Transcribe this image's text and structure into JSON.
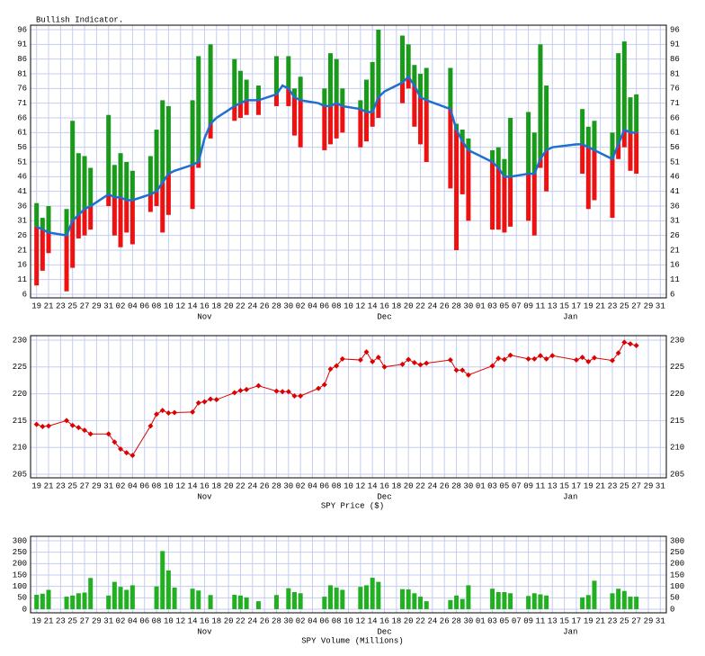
{
  "chart_data": [
    {
      "type": "range",
      "title": "Bullish Indicator.",
      "x": [
        0,
        1,
        2,
        5,
        6,
        7,
        8,
        9,
        12,
        13,
        14,
        15,
        16,
        19,
        20,
        21,
        22,
        23,
        26,
        27,
        28,
        29,
        30,
        33,
        34,
        35,
        37,
        40,
        41,
        42,
        43,
        44,
        47,
        48,
        49,
        50,
        51,
        54,
        55,
        56,
        57,
        58,
        61,
        62,
        63,
        64,
        65,
        69,
        70,
        71,
        72,
        76,
        77,
        78,
        79,
        82,
        83,
        84,
        85,
        86,
        90,
        91,
        92,
        93,
        96,
        97,
        98,
        99,
        100
      ],
      "xlim": [
        -1,
        105
      ],
      "xticks": [
        {
          "value": 0,
          "label": "19"
        },
        {
          "value": 2,
          "label": "21"
        },
        {
          "value": 4,
          "label": "23"
        },
        {
          "value": 6,
          "label": "25"
        },
        {
          "value": 8,
          "label": "27"
        },
        {
          "value": 10,
          "label": "29"
        },
        {
          "value": 12,
          "label": "31"
        },
        {
          "value": 14,
          "label": "02"
        },
        {
          "value": 16,
          "label": "04"
        },
        {
          "value": 18,
          "label": "06"
        },
        {
          "value": 20,
          "label": "08"
        },
        {
          "value": 22,
          "label": "10"
        },
        {
          "value": 24,
          "label": "12"
        },
        {
          "value": 26,
          "label": "14"
        },
        {
          "value": 28,
          "label": "16"
        },
        {
          "value": 30,
          "label": "18"
        },
        {
          "value": 32,
          "label": "20"
        },
        {
          "value": 34,
          "label": "22"
        },
        {
          "value": 36,
          "label": "24"
        },
        {
          "value": 38,
          "label": "26"
        },
        {
          "value": 40,
          "label": "28"
        },
        {
          "value": 42,
          "label": "30"
        },
        {
          "value": 44,
          "label": "02"
        },
        {
          "value": 46,
          "label": "04"
        },
        {
          "value": 48,
          "label": "06"
        },
        {
          "value": 50,
          "label": "08"
        },
        {
          "value": 52,
          "label": "10"
        },
        {
          "value": 54,
          "label": "12"
        },
        {
          "value": 56,
          "label": "14"
        },
        {
          "value": 58,
          "label": "16"
        },
        {
          "value": 60,
          "label": "18"
        },
        {
          "value": 62,
          "label": "20"
        },
        {
          "value": 64,
          "label": "22"
        },
        {
          "value": 66,
          "label": "24"
        },
        {
          "value": 68,
          "label": "26"
        },
        {
          "value": 70,
          "label": "28"
        },
        {
          "value": 72,
          "label": "30"
        },
        {
          "value": 74,
          "label": "01"
        },
        {
          "value": 76,
          "label": "03"
        },
        {
          "value": 78,
          "label": "05"
        },
        {
          "value": 80,
          "label": "07"
        },
        {
          "value": 82,
          "label": "09"
        },
        {
          "value": 84,
          "label": "11"
        },
        {
          "value": 86,
          "label": "13"
        },
        {
          "value": 88,
          "label": "15"
        },
        {
          "value": 90,
          "label": "17"
        },
        {
          "value": 92,
          "label": "19"
        },
        {
          "value": 94,
          "label": "21"
        },
        {
          "value": 96,
          "label": "23"
        },
        {
          "value": 98,
          "label": "25"
        },
        {
          "value": 100,
          "label": "27"
        },
        {
          "value": 102,
          "label": "29"
        },
        {
          "value": 104,
          "label": "31"
        }
      ],
      "months": [
        {
          "value": 28,
          "label": "Nov"
        },
        {
          "value": 58,
          "label": "Dec"
        },
        {
          "value": 89,
          "label": "Jan"
        }
      ],
      "high": [
        37,
        32,
        36,
        35,
        65,
        54,
        53,
        49,
        67,
        50,
        54,
        51,
        48,
        53,
        62,
        72,
        70,
        null,
        72,
        87,
        null,
        91,
        null,
        86,
        82,
        79,
        77,
        87,
        null,
        87,
        76,
        80,
        null,
        76,
        88,
        86,
        76,
        72,
        79,
        85,
        96,
        null,
        94,
        91,
        84,
        81,
        83,
        83,
        64,
        62,
        59,
        55,
        56,
        52,
        66,
        68,
        61,
        91,
        77,
        null,
        null,
        69,
        63,
        65,
        61,
        88,
        92,
        73,
        74
      ],
      "low": [
        9,
        14,
        20,
        7,
        15,
        25,
        26,
        28,
        36,
        26,
        22,
        27,
        23,
        34,
        36,
        27,
        33,
        null,
        35,
        49,
        null,
        59,
        null,
        65,
        66,
        67,
        67,
        70,
        null,
        70,
        60,
        56,
        null,
        55,
        57,
        59,
        61,
        56,
        58,
        63,
        66,
        null,
        71,
        76,
        63,
        57,
        51,
        42,
        21,
        40,
        31,
        28,
        28,
        27,
        29,
        31,
        26,
        49,
        41,
        null,
        null,
        47,
        35,
        38,
        32,
        52,
        56,
        48,
        47
      ],
      "line": [
        29,
        28,
        27,
        26,
        31,
        33,
        35,
        36,
        40,
        39,
        39,
        38,
        38,
        40,
        41,
        44,
        47,
        48,
        50,
        51,
        59,
        64,
        66,
        70,
        71,
        72,
        72,
        74,
        77,
        76,
        73,
        72,
        71,
        70,
        70,
        71,
        70,
        69,
        68,
        68,
        73,
        75,
        78,
        80,
        77,
        73,
        72,
        69,
        62,
        58,
        55,
        51,
        49,
        46,
        46,
        47,
        47,
        52,
        55,
        56,
        57,
        57,
        56,
        55,
        52,
        57,
        62,
        61,
        61
      ],
      "colors": {
        "above": "#1a9a1a",
        "below": "#ee1111",
        "line": "#1f6fd0"
      },
      "ylim": [
        6,
        96
      ],
      "yticks": [
        6,
        11,
        16,
        21,
        26,
        31,
        36,
        41,
        46,
        51,
        56,
        61,
        66,
        71,
        76,
        81,
        86,
        91,
        96
      ],
      "grid": true
    },
    {
      "type": "line",
      "title": "SPY Price ($)",
      "color": "#dd0000",
      "values": [
        214.3,
        213.9,
        214.0,
        215.0,
        214.1,
        213.7,
        213.2,
        212.5,
        212.5,
        211.0,
        209.7,
        209.0,
        208.5,
        214.0,
        216.2,
        216.9,
        216.4,
        216.5,
        216.6,
        218.3,
        218.5,
        219.0,
        218.9,
        220.2,
        220.6,
        220.8,
        221.5,
        220.5,
        220.4,
        220.4,
        219.6,
        219.6,
        221.0,
        221.7,
        224.6,
        225.2,
        226.5,
        226.3,
        227.8,
        226.0,
        226.8,
        225.0,
        225.5,
        226.4,
        225.8,
        225.4,
        225.7,
        226.3,
        224.4,
        224.4,
        223.5,
        225.2,
        226.6,
        226.4,
        227.2,
        226.5,
        226.5,
        227.1,
        226.5,
        227.1,
        226.3,
        226.8,
        226.0,
        226.7,
        226.2,
        227.6,
        229.6,
        229.3,
        229.0
      ],
      "ylim": [
        205,
        230
      ],
      "yticks": [
        205,
        210,
        215,
        220,
        225,
        230
      ],
      "grid": true
    },
    {
      "type": "bar",
      "title": "SPY Volume (Millions)",
      "color": "#22b022",
      "values": [
        63,
        68,
        85,
        55,
        60,
        70,
        73,
        137,
        60,
        120,
        98,
        85,
        105,
        null,
        100,
        255,
        170,
        95,
        90,
        82,
        null,
        62,
        null,
        63,
        60,
        52,
        35,
        62,
        null,
        92,
        75,
        70,
        null,
        55,
        105,
        95,
        85,
        98,
        105,
        138,
        120,
        null,
        88,
        87,
        70,
        55,
        35,
        40,
        60,
        45,
        105,
        90,
        75,
        75,
        70,
        58,
        70,
        65,
        60,
        null,
        null,
        52,
        62,
        125,
        70,
        90,
        80,
        55,
        55
      ],
      "ylim": [
        0,
        300
      ],
      "yticks": [
        0,
        50,
        100,
        150,
        200,
        250,
        300
      ],
      "grid": true
    }
  ]
}
